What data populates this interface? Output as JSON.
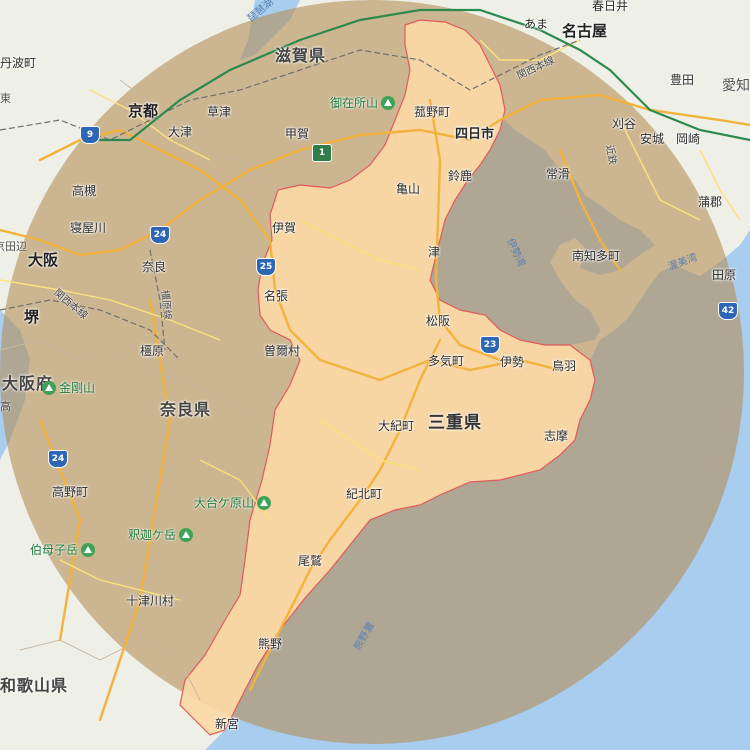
{
  "map": {
    "colors": {
      "land": "#eef0e8",
      "sea": "#a9cdee",
      "radius_fill": "#b38b52",
      "mie_fill": "#fbd9a6",
      "border": "#e05a5a"
    },
    "prefectures": {
      "mie": "三重県",
      "shiga": "滋賀県",
      "nara": "奈良県",
      "osaka": "大阪府",
      "wakayama": "和歌山県"
    },
    "cities": {
      "nagoya": "名古屋",
      "kyoto": "京都",
      "osaka": "大阪",
      "sakai": "堺",
      "yokkaichi": "四日市",
      "ama": "あま",
      "kasugai": "春日井",
      "toyota": "豊田",
      "kariya": "刈谷",
      "anjo": "安城",
      "okazaki": "岡崎",
      "tokoname": "常滑",
      "minamichita": "南知多町",
      "gamagori": "蒲郡",
      "tahara": "田原",
      "komono": "菰野町",
      "suzuka": "鈴鹿",
      "kameyama": "亀山",
      "tsu": "津",
      "matsusaka": "松阪",
      "taki": "多気町",
      "ise": "伊勢",
      "toba": "鳥羽",
      "shima": "志摩",
      "odai": "大紀町",
      "kihoku": "紀北町",
      "owase": "尾鷲",
      "kumano": "熊野",
      "shingu": "新宮",
      "iga": "伊賀",
      "nabari": "名張",
      "soni": "曽爾村",
      "nara": "奈良",
      "kashihara": "橿原",
      "koka": "甲賀",
      "kusatsu": "草津",
      "otsu": "大津",
      "takatsuki": "高槻",
      "neyagawa": "寝屋川",
      "takano": "高野町",
      "totsukawa": "十津川村",
      "tamba": "丹波町"
    },
    "mountains": {
      "gozaisho": "御在所山",
      "kongo": "金剛山",
      "odaigahara": "大台ケ原山",
      "shakagatake": "釈迦ケ岳",
      "hakkoshi": "伯母子岳"
    },
    "water": {
      "ise_bay": "伊勢湾",
      "atsumi_bay": "渥美湾",
      "kumano_nada": "熊野灘",
      "lake_biwa": "琵琶湖"
    },
    "rail": {
      "kansai_main_east": "関西本線",
      "kansai_main_west": "関西本線",
      "kintetsu": "近鉄",
      "kintetsu_kashihara": "橿原線"
    },
    "routes": {
      "r1": "1",
      "r9": "9",
      "r23": "23",
      "r24a": "24",
      "r24b": "24",
      "r25": "25",
      "r42": "42"
    },
    "edge_labels": {
      "ai": "愛知",
      "kyotanabe": "京田辺",
      "taka": "高",
      "sanda": "三田",
      "higashi": "東"
    }
  }
}
